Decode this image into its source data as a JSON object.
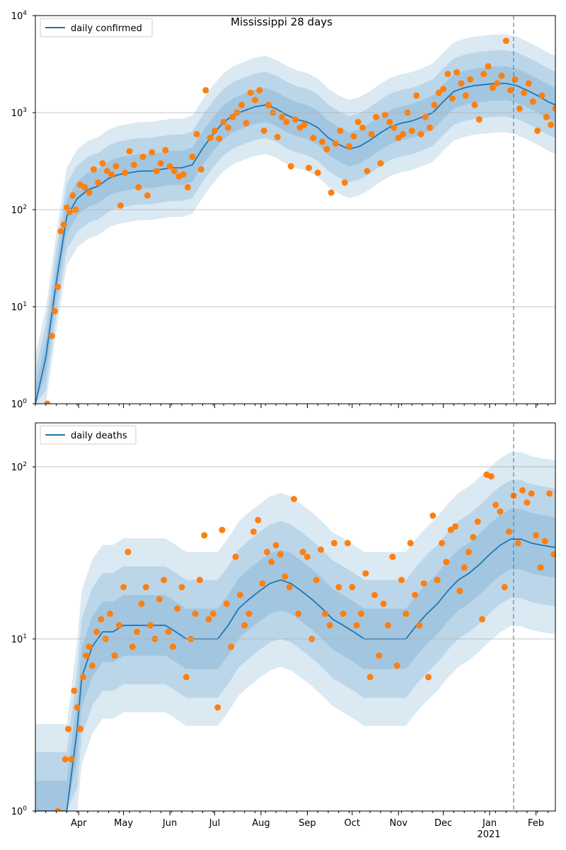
{
  "figure": {
    "title": "Mississippi 28 days"
  },
  "colors": {
    "line": "#1f77b4",
    "points": "#ff7f0e",
    "band": "#1f77b4",
    "grid": "#b0b0b0",
    "vline": "#1f77b4"
  },
  "x_axis": {
    "ticks": [
      "Apr",
      "May",
      "Jun",
      "Jul",
      "Aug",
      "Sep",
      "Oct",
      "Nov",
      "Dec",
      "Jan",
      "Feb"
    ],
    "tick_dates": [
      "2020-04-01",
      "2020-05-01",
      "2020-06-01",
      "2020-07-01",
      "2020-08-01",
      "2020-09-01",
      "2020-10-01",
      "2020-11-01",
      "2020-12-01",
      "2021-01-01",
      "2021-02-01"
    ],
    "year_label": "2021",
    "range": [
      "2020-03-03",
      "2021-02-14"
    ],
    "forecast_date": "2021-01-17"
  },
  "chart_data": [
    {
      "type": "line",
      "panel": "top",
      "title": "Mississippi 28 days",
      "yscale": "log",
      "ylim": [
        1,
        10000
      ],
      "yticks": [
        1,
        10,
        100,
        1000,
        10000
      ],
      "ytick_labels": [
        "10^0",
        "10^1",
        "10^2",
        "10^3",
        "10^4"
      ],
      "grid": "horizontal",
      "legend": {
        "placement": "top-left",
        "label": "daily confirmed"
      },
      "series": [
        {
          "name": "daily confirmed",
          "style": "line",
          "x": [
            "2020-03-03",
            "2020-03-10",
            "2020-03-17",
            "2020-03-24",
            "2020-03-31",
            "2020-04-07",
            "2020-04-14",
            "2020-04-21",
            "2020-04-28",
            "2020-05-05",
            "2020-05-12",
            "2020-05-19",
            "2020-05-26",
            "2020-06-02",
            "2020-06-09",
            "2020-06-16",
            "2020-06-23",
            "2020-06-30",
            "2020-07-07",
            "2020-07-14",
            "2020-07-21",
            "2020-07-28",
            "2020-08-04",
            "2020-08-11",
            "2020-08-18",
            "2020-08-25",
            "2020-09-01",
            "2020-09-08",
            "2020-09-15",
            "2020-09-22",
            "2020-09-29",
            "2020-10-06",
            "2020-10-13",
            "2020-10-20",
            "2020-10-27",
            "2020-11-03",
            "2020-11-10",
            "2020-11-17",
            "2020-11-24",
            "2020-12-01",
            "2020-12-08",
            "2020-12-15",
            "2020-12-22",
            "2020-12-29",
            "2021-01-05",
            "2021-01-12",
            "2021-01-19",
            "2021-01-26",
            "2021-02-02",
            "2021-02-09",
            "2021-02-14"
          ],
          "y": [
            1,
            3,
            18,
            85,
            130,
            160,
            175,
            210,
            230,
            240,
            250,
            250,
            260,
            270,
            270,
            290,
            430,
            600,
            800,
            950,
            1050,
            1150,
            1200,
            1100,
            950,
            850,
            800,
            700,
            550,
            470,
            420,
            450,
            520,
            620,
            720,
            780,
            820,
            900,
            1000,
            1300,
            1650,
            1800,
            1900,
            1950,
            2000,
            2000,
            1900,
            1700,
            1500,
            1300,
            1200
          ]
        },
        {
          "name": "",
          "style": "scatter",
          "x": [
            "2020-03-11",
            "2020-03-14",
            "2020-03-16",
            "2020-03-18",
            "2020-03-20",
            "2020-03-22",
            "2020-03-24",
            "2020-03-26",
            "2020-03-28",
            "2020-03-30",
            "2020-04-02",
            "2020-04-05",
            "2020-04-08",
            "2020-04-11",
            "2020-04-14",
            "2020-04-17",
            "2020-04-20",
            "2020-04-23",
            "2020-04-26",
            "2020-04-29",
            "2020-05-02",
            "2020-05-05",
            "2020-05-08",
            "2020-05-11",
            "2020-05-14",
            "2020-05-17",
            "2020-05-20",
            "2020-05-23",
            "2020-05-26",
            "2020-05-29",
            "2020-06-01",
            "2020-06-04",
            "2020-06-07",
            "2020-06-10",
            "2020-06-13",
            "2020-06-16",
            "2020-06-19",
            "2020-06-22",
            "2020-06-25",
            "2020-06-28",
            "2020-07-01",
            "2020-07-04",
            "2020-07-07",
            "2020-07-10",
            "2020-07-13",
            "2020-07-16",
            "2020-07-19",
            "2020-07-22",
            "2020-07-25",
            "2020-07-28",
            "2020-07-31",
            "2020-08-03",
            "2020-08-06",
            "2020-08-09",
            "2020-08-12",
            "2020-08-15",
            "2020-08-18",
            "2020-08-21",
            "2020-08-24",
            "2020-08-27",
            "2020-08-30",
            "2020-09-02",
            "2020-09-05",
            "2020-09-08",
            "2020-09-11",
            "2020-09-14",
            "2020-09-17",
            "2020-09-20",
            "2020-09-23",
            "2020-09-26",
            "2020-09-29",
            "2020-10-02",
            "2020-10-05",
            "2020-10-08",
            "2020-10-11",
            "2020-10-14",
            "2020-10-17",
            "2020-10-20",
            "2020-10-23",
            "2020-10-26",
            "2020-10-29",
            "2020-11-01",
            "2020-11-04",
            "2020-11-07",
            "2020-11-10",
            "2020-11-13",
            "2020-11-16",
            "2020-11-19",
            "2020-11-22",
            "2020-11-25",
            "2020-11-28",
            "2020-12-01",
            "2020-12-04",
            "2020-12-07",
            "2020-12-10",
            "2020-12-13",
            "2020-12-16",
            "2020-12-19",
            "2020-12-22",
            "2020-12-25",
            "2020-12-28",
            "2020-12-31",
            "2021-01-03",
            "2021-01-06",
            "2021-01-09",
            "2021-01-12",
            "2021-01-15",
            "2021-01-18",
            "2021-01-21",
            "2021-01-24",
            "2021-01-27",
            "2021-01-30",
            "2021-02-02",
            "2021-02-05",
            "2021-02-08",
            "2021-02-11",
            "2021-02-14"
          ],
          "y": [
            1,
            5,
            9,
            16,
            60,
            70,
            105,
            95,
            140,
            100,
            180,
            170,
            150,
            260,
            190,
            300,
            250,
            230,
            280,
            110,
            240,
            400,
            290,
            170,
            350,
            140,
            390,
            250,
            300,
            410,
            280,
            250,
            220,
            230,
            170,
            350,
            600,
            260,
            1700,
            550,
            650,
            540,
            800,
            700,
            900,
            1000,
            1200,
            780,
            1600,
            1350,
            1700,
            650,
            1200,
            1000,
            560,
            900,
            800,
            280,
            850,
            700,
            750,
            270,
            550,
            240,
            500,
            420,
            150,
            480,
            650,
            190,
            450,
            570,
            800,
            700,
            250,
            600,
            900,
            300,
            950,
            800,
            700,
            550,
            600,
            1000,
            650,
            1500,
            600,
            900,
            700,
            1200,
            1600,
            1750,
            2500,
            1400,
            2600,
            2000,
            1500,
            2200,
            1200,
            850,
            2500,
            3000,
            1800,
            2000,
            2400,
            5500,
            1700,
            2200,
            1100,
            1600,
            2000,
            1300,
            650,
            1500,
            900,
            750,
            1100
          ]
        }
      ]
    },
    {
      "type": "line",
      "panel": "bottom",
      "title": "",
      "yscale": "log",
      "ylim": [
        1,
        180
      ],
      "yticks": [
        1,
        10,
        100
      ],
      "ytick_labels": [
        "10^0",
        "10^1",
        "10^2"
      ],
      "grid": "horizontal",
      "legend": {
        "placement": "top-left",
        "label": "daily deaths"
      },
      "series": [
        {
          "name": "daily deaths",
          "style": "line",
          "x": [
            "2020-03-03",
            "2020-03-17",
            "2020-03-24",
            "2020-03-31",
            "2020-04-03",
            "2020-04-10",
            "2020-04-17",
            "2020-04-24",
            "2020-05-01",
            "2020-05-08",
            "2020-05-15",
            "2020-05-22",
            "2020-05-29",
            "2020-06-05",
            "2020-06-12",
            "2020-06-19",
            "2020-06-26",
            "2020-07-03",
            "2020-07-10",
            "2020-07-17",
            "2020-07-24",
            "2020-07-31",
            "2020-08-07",
            "2020-08-14",
            "2020-08-21",
            "2020-08-28",
            "2020-09-04",
            "2020-09-11",
            "2020-09-18",
            "2020-09-25",
            "2020-10-02",
            "2020-10-09",
            "2020-10-16",
            "2020-10-23",
            "2020-10-30",
            "2020-11-06",
            "2020-11-13",
            "2020-11-20",
            "2020-11-27",
            "2020-12-04",
            "2020-12-11",
            "2020-12-18",
            "2020-12-25",
            "2021-01-01",
            "2021-01-08",
            "2021-01-15",
            "2021-01-22",
            "2021-01-29",
            "2021-02-05",
            "2021-02-14"
          ],
          "y": [
            1,
            1,
            1,
            3,
            6,
            9,
            11,
            11,
            12,
            12,
            12,
            12,
            12,
            11,
            10,
            10,
            10,
            10,
            12,
            15,
            17,
            19,
            21,
            22,
            21,
            19,
            17,
            15,
            13,
            12,
            11,
            10,
            10,
            10,
            10,
            10,
            12,
            14,
            16,
            19,
            22,
            24,
            27,
            31,
            35,
            38,
            38,
            36,
            35,
            34
          ]
        },
        {
          "name": "",
          "style": "scatter",
          "x": [
            "2020-03-18",
            "2020-03-23",
            "2020-03-25",
            "2020-03-27",
            "2020-03-29",
            "2020-03-31",
            "2020-04-02",
            "2020-04-04",
            "2020-04-06",
            "2020-04-08",
            "2020-04-10",
            "2020-04-13",
            "2020-04-16",
            "2020-04-19",
            "2020-04-22",
            "2020-04-25",
            "2020-04-28",
            "2020-05-01",
            "2020-05-04",
            "2020-05-07",
            "2020-05-10",
            "2020-05-13",
            "2020-05-16",
            "2020-05-19",
            "2020-05-22",
            "2020-05-25",
            "2020-05-28",
            "2020-05-31",
            "2020-06-03",
            "2020-06-06",
            "2020-06-09",
            "2020-06-12",
            "2020-06-15",
            "2020-06-18",
            "2020-06-21",
            "2020-06-24",
            "2020-06-27",
            "2020-06-30",
            "2020-07-03",
            "2020-07-06",
            "2020-07-09",
            "2020-07-12",
            "2020-07-15",
            "2020-07-18",
            "2020-07-21",
            "2020-07-24",
            "2020-07-27",
            "2020-07-30",
            "2020-08-02",
            "2020-08-05",
            "2020-08-08",
            "2020-08-11",
            "2020-08-14",
            "2020-08-17",
            "2020-08-20",
            "2020-08-23",
            "2020-08-26",
            "2020-08-29",
            "2020-09-01",
            "2020-09-04",
            "2020-09-07",
            "2020-09-10",
            "2020-09-13",
            "2020-09-16",
            "2020-09-19",
            "2020-09-22",
            "2020-09-25",
            "2020-09-28",
            "2020-10-01",
            "2020-10-04",
            "2020-10-07",
            "2020-10-10",
            "2020-10-13",
            "2020-10-16",
            "2020-10-19",
            "2020-10-22",
            "2020-10-25",
            "2020-10-28",
            "2020-10-31",
            "2020-11-03",
            "2020-11-06",
            "2020-11-09",
            "2020-11-12",
            "2020-11-15",
            "2020-11-18",
            "2020-11-21",
            "2020-11-24",
            "2020-11-27",
            "2020-11-30",
            "2020-12-03",
            "2020-12-06",
            "2020-12-09",
            "2020-12-12",
            "2020-12-15",
            "2020-12-18",
            "2020-12-21",
            "2020-12-24",
            "2020-12-27",
            "2020-12-30",
            "2021-01-02",
            "2021-01-05",
            "2021-01-08",
            "2021-01-11",
            "2021-01-14",
            "2021-01-17",
            "2021-01-20",
            "2021-01-23",
            "2021-01-26",
            "2021-01-29",
            "2021-02-01",
            "2021-02-04",
            "2021-02-07",
            "2021-02-10",
            "2021-02-13"
          ],
          "y": [
            1,
            2,
            3,
            2,
            5,
            4,
            3,
            6,
            8,
            9,
            7,
            11,
            13,
            10,
            14,
            8,
            12,
            20,
            32,
            9,
            11,
            16,
            20,
            12,
            10,
            17,
            22,
            11,
            9,
            15,
            20,
            6,
            10,
            14,
            22,
            40,
            13,
            14,
            4,
            43,
            16,
            9,
            30,
            18,
            12,
            14,
            42,
            49,
            21,
            32,
            28,
            35,
            31,
            23,
            20,
            65,
            14,
            32,
            30,
            10,
            22,
            33,
            14,
            12,
            36,
            20,
            14,
            36,
            20,
            12,
            14,
            24,
            6,
            18,
            8,
            16,
            12,
            30,
            7,
            22,
            14,
            36,
            18,
            12,
            21,
            6,
            52,
            22,
            36,
            28,
            43,
            45,
            19,
            26,
            32,
            39,
            48,
            13,
            90,
            88,
            60,
            55,
            20,
            42,
            68,
            36,
            73,
            62,
            70,
            40,
            26,
            37,
            70,
            31
          ]
        }
      ]
    }
  ]
}
